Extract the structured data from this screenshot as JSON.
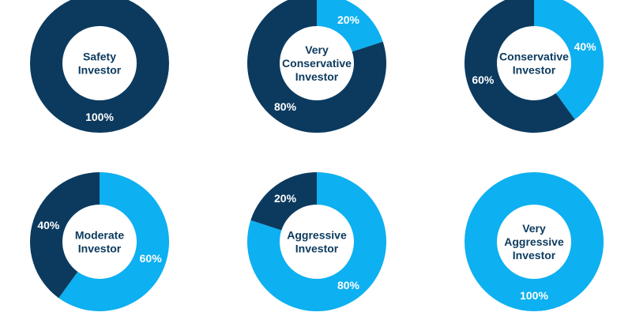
{
  "colors": {
    "safety": "#0b3a5e",
    "growth": "#0db0f0",
    "center_text": "#0b3a5e",
    "slice_text": "#ffffff",
    "background": "#ffffff"
  },
  "chart_data": [
    {
      "type": "pie",
      "title": "Safety\nInvestor",
      "slices": [
        {
          "value": 100,
          "label": "100%",
          "color": "#0b3a5e"
        }
      ]
    },
    {
      "type": "pie",
      "title": "Very\nConservative\nInvestor",
      "slices": [
        {
          "value": 20,
          "label": "20%",
          "color": "#0db0f0"
        },
        {
          "value": 80,
          "label": "80%",
          "color": "#0b3a5e"
        }
      ]
    },
    {
      "type": "pie",
      "title": "Conservative\nInvestor",
      "slices": [
        {
          "value": 40,
          "label": "40%",
          "color": "#0db0f0"
        },
        {
          "value": 60,
          "label": "60%",
          "color": "#0b3a5e"
        }
      ]
    },
    {
      "type": "pie",
      "title": "Moderate\nInvestor",
      "slices": [
        {
          "value": 60,
          "label": "60%",
          "color": "#0db0f0"
        },
        {
          "value": 40,
          "label": "40%",
          "color": "#0b3a5e"
        }
      ]
    },
    {
      "type": "pie",
      "title": "Aggressive\nInvestor",
      "slices": [
        {
          "value": 80,
          "label": "80%",
          "color": "#0db0f0"
        },
        {
          "value": 20,
          "label": "20%",
          "color": "#0b3a5e"
        }
      ]
    },
    {
      "type": "pie",
      "title": "Very\nAggressive\nInvestor",
      "slices": [
        {
          "value": 100,
          "label": "100%",
          "color": "#0db0f0"
        }
      ]
    }
  ]
}
